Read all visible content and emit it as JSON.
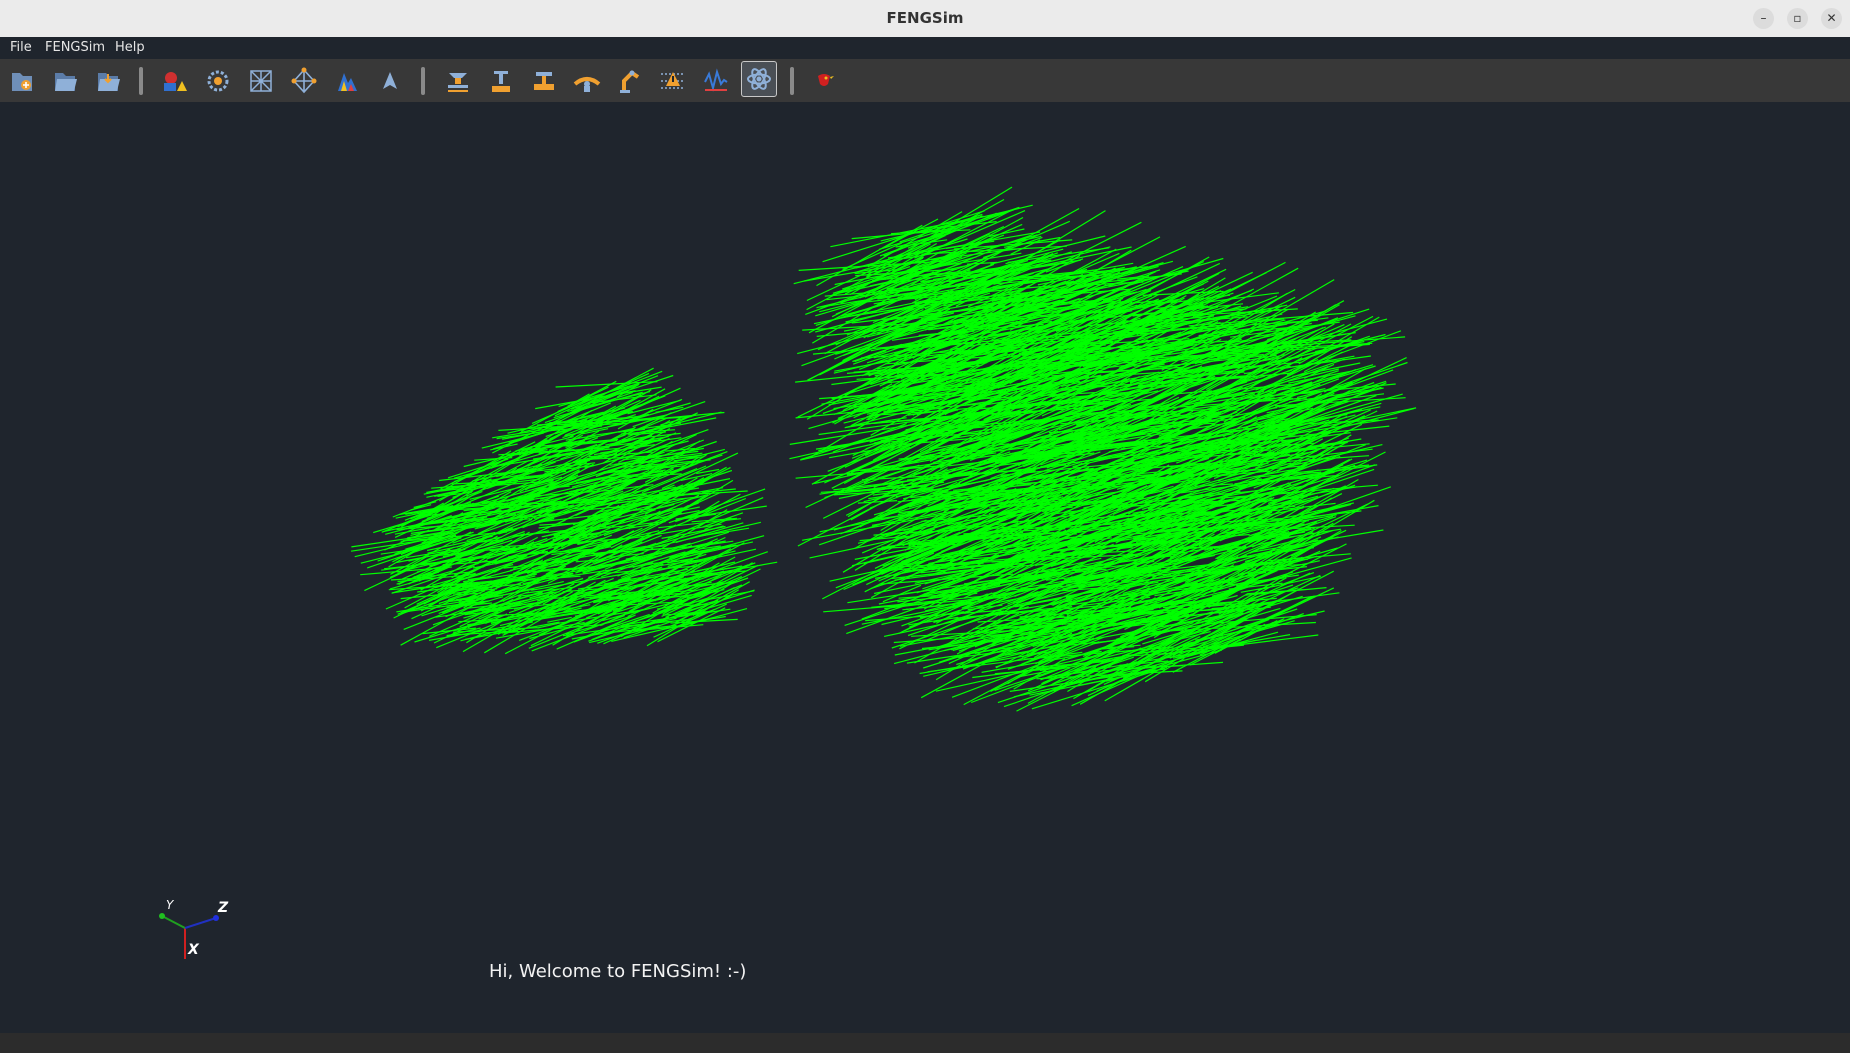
{
  "window": {
    "title": "FENGSim"
  },
  "menubar": {
    "items": [
      "File",
      "FENGSim",
      "Help"
    ]
  },
  "toolbar": {
    "groups": [
      [
        "new-file-icon",
        "open-folder-icon",
        "save-folder-icon"
      ],
      [
        "cad-shapes-icon",
        "atom-gear-icon",
        "mesh-icon",
        "vertex-icon",
        "color-map-icon",
        "arrow-icon"
      ],
      [
        "measure-stack-icon",
        "measure-ruler-icon",
        "machining-icon",
        "bend-icon",
        "robot-arm-icon",
        "layers-icon",
        "signal-icon",
        "atom-icon"
      ],
      [
        "bird-logo-icon"
      ]
    ],
    "active": "atom-icon"
  },
  "viewport": {
    "welcome_text": "Hi, Welcome to FENGSim! :-)",
    "line_color": "#00ff00",
    "background": "#1f252d"
  },
  "axes": {
    "x": "X",
    "y": "Y",
    "z": "Z"
  }
}
